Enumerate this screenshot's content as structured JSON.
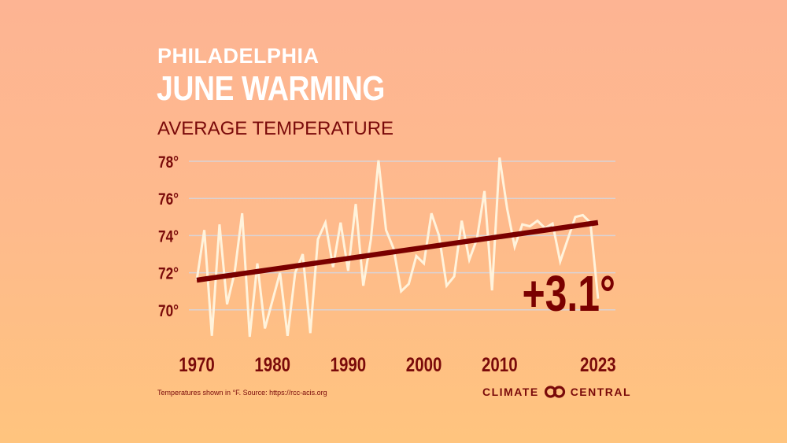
{
  "header": {
    "line1": "PHILADELPHIA",
    "line2": "JUNE WARMING",
    "subtitle": "AVERAGE TEMPERATURE"
  },
  "footer": {
    "source": "Temperatures shown in °F. Source: https://rcc-acis.org",
    "logo_text_left": "CLIMATE",
    "logo_text_right": "CENTRAL"
  },
  "colors": {
    "line": "#fff3dc",
    "trend": "#7a0000",
    "text": "#7a0a0a",
    "grid": "#d9d3d6"
  },
  "chart_data": {
    "type": "line",
    "title": "JUNE WARMING",
    "subtitle": "AVERAGE TEMPERATURE",
    "ylim": [
      69,
      78.5
    ],
    "yticks": [
      70,
      72,
      74,
      76,
      78
    ],
    "ytick_labels": [
      "70°",
      "72°",
      "74°",
      "76°",
      "78°"
    ],
    "xticks": [
      1970,
      1980,
      1990,
      2000,
      2010,
      2023
    ],
    "xtick_labels": [
      "1970",
      "1980",
      "1990",
      "2000",
      "2010",
      "2023"
    ],
    "grid": true,
    "x": [
      1970,
      1971,
      1972,
      1973,
      1974,
      1975,
      1976,
      1977,
      1978,
      1979,
      1980,
      1981,
      1982,
      1983,
      1984,
      1985,
      1986,
      1987,
      1988,
      1989,
      1990,
      1991,
      1992,
      1993,
      1994,
      1995,
      1996,
      1997,
      1998,
      1999,
      2000,
      2001,
      2002,
      2003,
      2004,
      2005,
      2006,
      2007,
      2008,
      2009,
      2010,
      2011,
      2012,
      2013,
      2014,
      2015,
      2016,
      2017,
      2018,
      2019,
      2020,
      2021,
      2022,
      2023
    ],
    "values": [
      71.6,
      74.3,
      68.6,
      74.6,
      70.3,
      72.0,
      75.2,
      68.55,
      72.5,
      69.0,
      70.5,
      72.0,
      68.6,
      72.0,
      73.0,
      68.75,
      73.8,
      74.7,
      72.3,
      74.7,
      72.1,
      75.7,
      71.3,
      73.8,
      78.05,
      74.3,
      73.3,
      71.0,
      71.4,
      72.9,
      72.5,
      75.2,
      74.0,
      71.3,
      71.8,
      74.8,
      72.7,
      73.8,
      76.4,
      71.05,
      78.2,
      75.45,
      73.4,
      74.6,
      74.5,
      74.8,
      74.4,
      74.65,
      72.6,
      73.8,
      75.0,
      75.1,
      74.7,
      70.6
    ],
    "trend": {
      "start": [
        1970,
        71.6
      ],
      "end": [
        2023,
        74.7
      ]
    },
    "annotation": "+3.1°"
  }
}
